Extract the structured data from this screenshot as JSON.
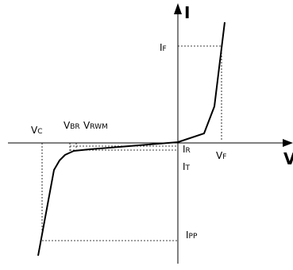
{
  "diagram": {
    "axis_labels": {
      "y_main": "I",
      "x_main": "V"
    },
    "labels": [
      {
        "id": "ip-f",
        "main": "I",
        "sub": "F"
      },
      {
        "id": "v-c",
        "main": "V",
        "sub": "C"
      },
      {
        "id": "v-br",
        "main": "V",
        "sub": "BR"
      },
      {
        "id": "v-rwm",
        "main": "V",
        "sub": "RWM"
      },
      {
        "id": "i-r",
        "main": "I",
        "sub": "R"
      },
      {
        "id": "i-t",
        "main": "I",
        "sub": "T"
      },
      {
        "id": "v-f",
        "main": "V",
        "sub": "F"
      },
      {
        "id": "i-pp",
        "main": "I",
        "sub": "PP"
      }
    ],
    "colors": {
      "line": "#000000",
      "background": "#ffffff"
    }
  }
}
